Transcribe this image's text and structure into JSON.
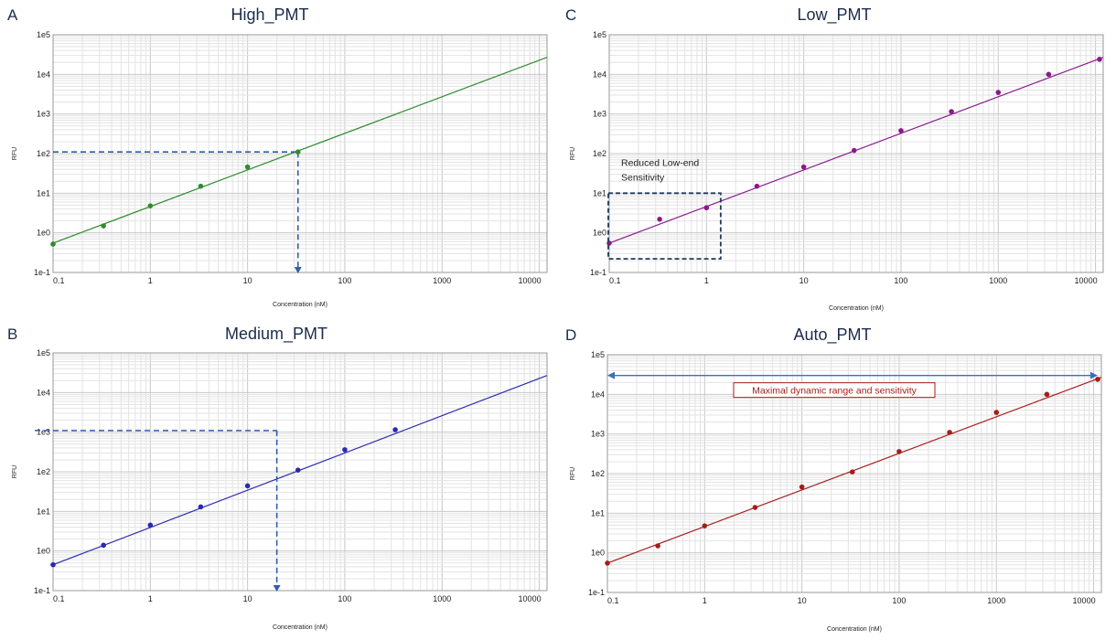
{
  "chart_data": [
    {
      "panel": "A",
      "title": "High_PMT",
      "type": "scatter",
      "xlabel": "Concentration (nM)",
      "ylabel": "RFU",
      "xscale": "log",
      "yscale": "log",
      "xlim": [
        0.1,
        12000
      ],
      "ylim": [
        0.1,
        100000
      ],
      "x_ticks": [
        "0.1",
        "1",
        "10",
        "100",
        "1000",
        "10000"
      ],
      "y_ticks": [
        "1e-1",
        "1e0",
        "1e1",
        "1e2",
        "1e3",
        "1e4",
        "1e5"
      ],
      "grid": true,
      "color": "#2e8b2e",
      "points": [
        {
          "x": 0.1,
          "y": 0.52
        },
        {
          "x": 0.33,
          "y": 1.5
        },
        {
          "x": 1,
          "y": 4.8
        },
        {
          "x": 3.3,
          "y": 15
        },
        {
          "x": 10,
          "y": 46
        },
        {
          "x": 33,
          "y": 110
        }
      ],
      "fit": {
        "x": [
          0.1,
          12000
        ],
        "y": [
          0.55,
          27000
        ]
      },
      "dashed_guide": {
        "x": 33,
        "y": 110,
        "y_from_axis": true,
        "x_arrow_down": true
      }
    },
    {
      "panel": "B",
      "title": "Medium_PMT",
      "type": "scatter",
      "xlabel": "Concentration (nM)",
      "ylabel": "RFU",
      "xscale": "log",
      "yscale": "log",
      "xlim": [
        0.1,
        12000
      ],
      "ylim": [
        0.1,
        100000
      ],
      "x_ticks": [
        "0.1",
        "1",
        "10",
        "100",
        "1000",
        "10000"
      ],
      "y_ticks": [
        "1e-1",
        "1e0",
        "1e1",
        "1e2",
        "1e3",
        "1e4",
        "1e5"
      ],
      "grid": true,
      "color": "#2a2ab0",
      "points": [
        {
          "x": 0.1,
          "y": 0.45
        },
        {
          "x": 0.33,
          "y": 1.4
        },
        {
          "x": 1,
          "y": 4.5
        },
        {
          "x": 3.3,
          "y": 13
        },
        {
          "x": 10,
          "y": 44
        },
        {
          "x": 33,
          "y": 110
        },
        {
          "x": 100,
          "y": 360
        },
        {
          "x": 330,
          "y": 1150
        }
      ],
      "fit": {
        "x": [
          0.1,
          12000
        ],
        "y": [
          0.45,
          27000
        ]
      },
      "dashed_guide": {
        "x": 20,
        "y": 1100,
        "y_from_axis": true,
        "x_arrow_down": true
      }
    },
    {
      "panel": "C",
      "title": "Low_PMT",
      "type": "scatter",
      "xlabel": "Concentration (nM)",
      "ylabel": "RFU",
      "xscale": "log",
      "yscale": "log",
      "xlim": [
        0.1,
        12000
      ],
      "ylim": [
        0.1,
        100000
      ],
      "x_ticks": [
        "0.1",
        "1",
        "10",
        "100",
        "1000",
        "10000"
      ],
      "y_ticks": [
        "1e-1",
        "1e0",
        "1e1",
        "1e2",
        "1e3",
        "1e4",
        "1e5"
      ],
      "grid": true,
      "color": "#8b1a8b",
      "points": [
        {
          "x": 0.1,
          "y": 0.55
        },
        {
          "x": 0.33,
          "y": 2.2
        },
        {
          "x": 1,
          "y": 4.3
        },
        {
          "x": 3.3,
          "y": 15
        },
        {
          "x": 10,
          "y": 46
        },
        {
          "x": 33,
          "y": 120
        },
        {
          "x": 100,
          "y": 380
        },
        {
          "x": 330,
          "y": 1150
        },
        {
          "x": 1000,
          "y": 3500
        },
        {
          "x": 3300,
          "y": 10000
        },
        {
          "x": 11000,
          "y": 24000
        }
      ],
      "fit": {
        "x": [
          0.1,
          12000
        ],
        "y": [
          0.55,
          27000
        ]
      },
      "annotation": {
        "text": "Reduced Low-end Sensitivity",
        "lines": [
          "Reduced Low-end",
          "Sensitivity"
        ],
        "box": {
          "x": [
            0.1,
            1.4
          ],
          "y": [
            0.22,
            10
          ]
        }
      }
    },
    {
      "panel": "D",
      "title": "Auto_PMT",
      "type": "scatter",
      "xlabel": "Concentration (nM)",
      "ylabel": "RFU",
      "xscale": "log",
      "yscale": "log",
      "xlim": [
        0.1,
        12000
      ],
      "ylim": [
        0.1,
        100000
      ],
      "x_ticks": [
        "0.1",
        "1",
        "10",
        "100",
        "1000",
        "10000"
      ],
      "y_ticks": [
        "1e-1",
        "1e0",
        "1e1",
        "1e2",
        "1e3",
        "1e4",
        "1e5"
      ],
      "grid": true,
      "color": "#a51d1d",
      "points": [
        {
          "x": 0.1,
          "y": 0.55
        },
        {
          "x": 0.33,
          "y": 1.5
        },
        {
          "x": 1,
          "y": 4.8
        },
        {
          "x": 3.3,
          "y": 14
        },
        {
          "x": 10,
          "y": 46
        },
        {
          "x": 33,
          "y": 110
        },
        {
          "x": 100,
          "y": 360
        },
        {
          "x": 330,
          "y": 1100
        },
        {
          "x": 1000,
          "y": 3500
        },
        {
          "x": 3300,
          "y": 10000
        },
        {
          "x": 11000,
          "y": 24000
        }
      ],
      "fit": {
        "x": [
          0.1,
          12000
        ],
        "y": [
          0.55,
          27000
        ]
      },
      "annotation": {
        "text": "Maximal dynamic range and sensitivity",
        "range_arrow": {
          "x": [
            0.1,
            11000
          ],
          "y": 30000
        }
      }
    }
  ]
}
